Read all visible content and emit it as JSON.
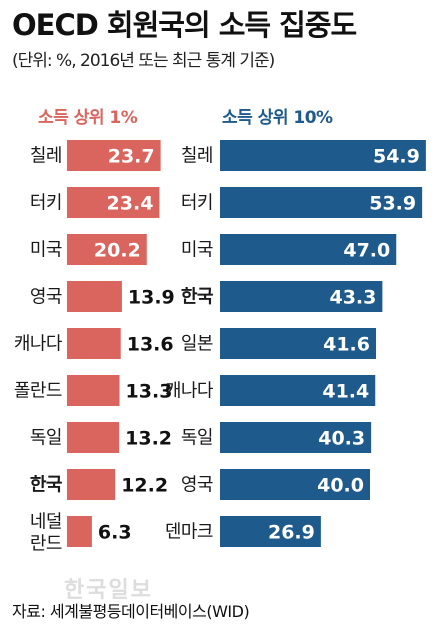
{
  "title": "OECD 회원국의 소득 집중도",
  "subtitle": "(단위: %, 2016년 또는 최근 통계 기준)",
  "source": "자료: 세계불평등데이터베이스(WID)",
  "watermark": "한국일보",
  "colors": {
    "left_bar": "#d9655e",
    "right_bar": "#1f5a8c",
    "highlight_text": "#111111"
  },
  "chart_data": [
    {
      "type": "bar",
      "orientation": "horizontal",
      "title": "소득 상위 1%",
      "categories": [
        "칠레",
        "터키",
        "미국",
        "영국",
        "캐나다",
        "폴란드",
        "독일",
        "한국",
        "네덜\n란드"
      ],
      "values": [
        23.7,
        23.4,
        20.2,
        13.9,
        13.6,
        13.3,
        13.2,
        12.2,
        6.3
      ],
      "value_labels": [
        "23.7",
        "23.4",
        "20.2",
        "13.9",
        "13.6",
        "13.3",
        "13.2",
        "12.2",
        "6.3"
      ],
      "highlight": "한국"
    },
    {
      "type": "bar",
      "orientation": "horizontal",
      "title": "소득 상위 10%",
      "categories": [
        "칠레",
        "터키",
        "미국",
        "한국",
        "일본",
        "캐나다",
        "독일",
        "영국",
        "덴마크"
      ],
      "values": [
        54.9,
        53.9,
        47.0,
        43.3,
        41.6,
        41.4,
        40.3,
        40.0,
        26.9
      ],
      "value_labels": [
        "54.9",
        "53.9",
        "47.0",
        "43.3",
        "41.6",
        "41.4",
        "40.3",
        "40.0",
        "26.9"
      ],
      "highlight": "한국"
    }
  ]
}
